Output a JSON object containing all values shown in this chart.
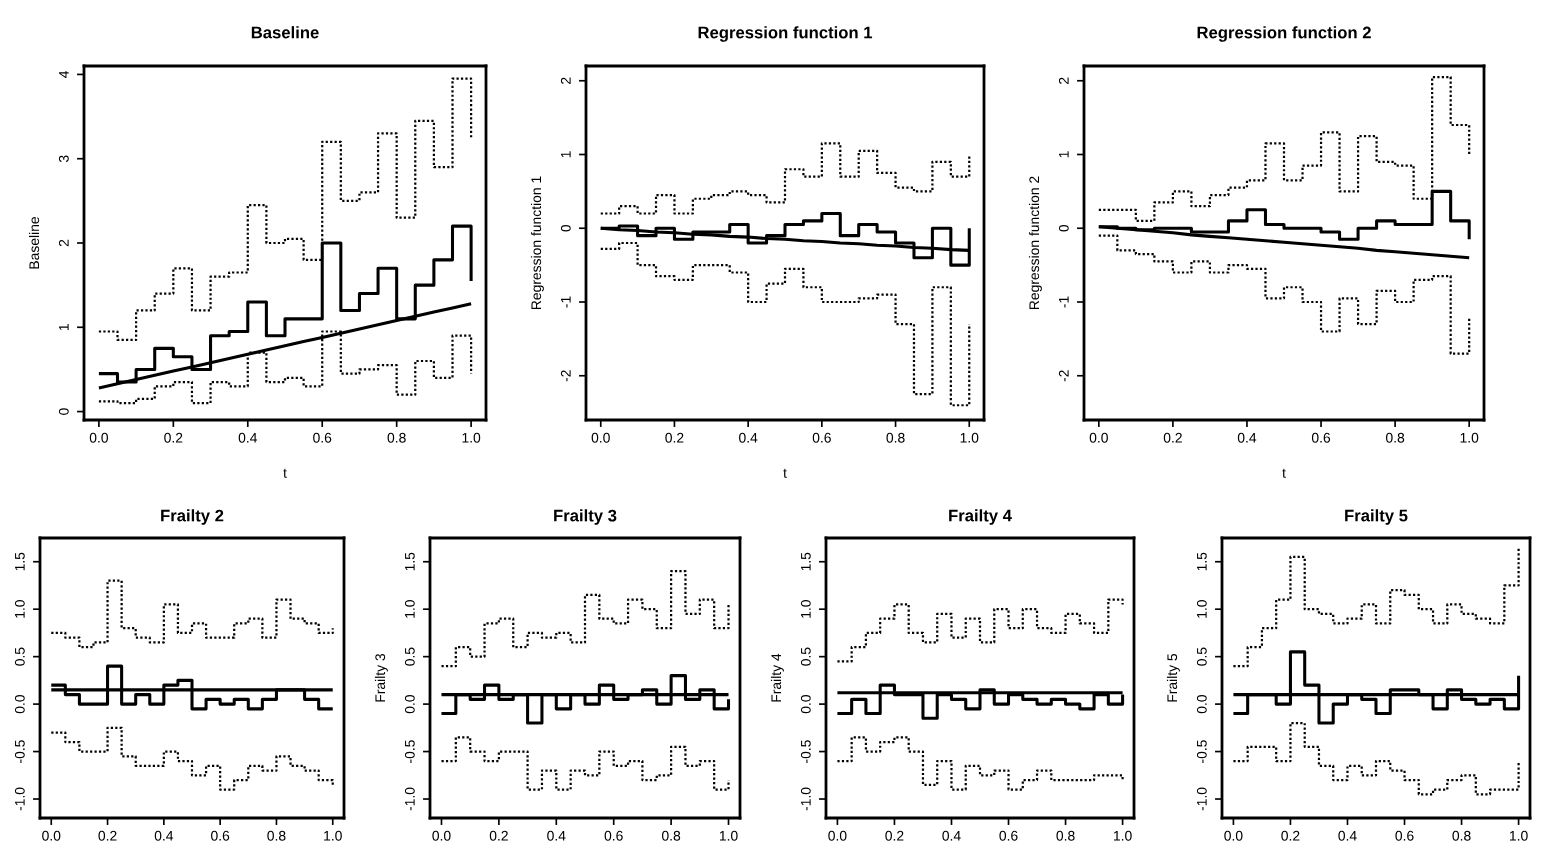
{
  "chart_data": [
    {
      "type": "step",
      "title": "Baseline",
      "xlabel": "t",
      "ylabel": "Baseline",
      "x": [
        0,
        0.05,
        0.1,
        0.15,
        0.2,
        0.25,
        0.3,
        0.35,
        0.4,
        0.45,
        0.5,
        0.55,
        0.6,
        0.65,
        0.7,
        0.75,
        0.8,
        0.85,
        0.9,
        0.95,
        1.0
      ],
      "xlim": [
        -0.04,
        1.04
      ],
      "ylim": [
        -0.1,
        4.1
      ],
      "xticks": [
        {
          "value": 0,
          "label": "0.0"
        },
        {
          "value": 0.2,
          "label": "0.2"
        },
        {
          "value": 0.4,
          "label": "0.4"
        },
        {
          "value": 0.6,
          "label": "0.6"
        },
        {
          "value": 0.8,
          "label": "0.8"
        },
        {
          "value": 1,
          "label": "1.0"
        }
      ],
      "yticks": [
        0,
        1,
        2,
        3,
        4
      ],
      "series": [
        {
          "color": "#000000",
          "line_style": "solid",
          "values": [
            0.45,
            0.35,
            0.5,
            0.75,
            0.65,
            0.5,
            0.9,
            0.95,
            1.3,
            0.9,
            1.1,
            1.1,
            2.0,
            1.2,
            1.4,
            1.7,
            1.1,
            1.5,
            1.8,
            2.2,
            1.55
          ]
        },
        {
          "color": "#000000",
          "line_style": "dotted",
          "values": [
            0.95,
            0.85,
            1.2,
            1.4,
            1.7,
            1.2,
            1.6,
            1.65,
            2.45,
            2.0,
            2.05,
            1.8,
            3.2,
            2.5,
            2.6,
            3.3,
            2.3,
            3.45,
            2.9,
            3.95,
            3.25
          ]
        },
        {
          "color": "#000000",
          "line_style": "dotted",
          "values": [
            0.12,
            0.1,
            0.15,
            0.3,
            0.35,
            0.1,
            0.35,
            0.3,
            0.7,
            0.35,
            0.4,
            0.3,
            0.95,
            0.45,
            0.5,
            0.55,
            0.2,
            0.6,
            0.4,
            0.9,
            0.45
          ]
        },
        {
          "type": "line",
          "color": "#000000",
          "line_style": "solid",
          "values": [
            0.28,
            0.33,
            0.38,
            0.43,
            0.48,
            0.53,
            0.58,
            0.63,
            0.68,
            0.73,
            0.78,
            0.83,
            0.88,
            0.93,
            0.98,
            1.03,
            1.08,
            1.13,
            1.18,
            1.23,
            1.28
          ]
        }
      ]
    },
    {
      "type": "step",
      "title": "Regression function 1",
      "xlabel": "t",
      "ylabel": "Regression function 1",
      "x": [
        0,
        0.05,
        0.1,
        0.15,
        0.2,
        0.25,
        0.3,
        0.35,
        0.4,
        0.45,
        0.5,
        0.55,
        0.6,
        0.65,
        0.7,
        0.75,
        0.8,
        0.85,
        0.9,
        0.95,
        1.0
      ],
      "xlim": [
        -0.04,
        1.04
      ],
      "ylim": [
        -2.6,
        2.2
      ],
      "xticks": [
        {
          "value": 0,
          "label": "0.0"
        },
        {
          "value": 0.2,
          "label": "0.2"
        },
        {
          "value": 0.4,
          "label": "0.4"
        },
        {
          "value": 0.6,
          "label": "0.6"
        },
        {
          "value": 0.8,
          "label": "0.8"
        },
        {
          "value": 1,
          "label": "1.0"
        }
      ],
      "yticks": [
        -2,
        -1,
        0,
        1,
        2
      ],
      "series": [
        {
          "color": "#000000",
          "line_style": "solid",
          "values": [
            0,
            0.03,
            -0.1,
            0,
            -0.15,
            -0.05,
            -0.05,
            0.05,
            -0.2,
            -0.1,
            0.05,
            0.1,
            0.2,
            -0.1,
            0.05,
            -0.05,
            -0.2,
            -0.4,
            0,
            -0.5,
            0
          ]
        },
        {
          "color": "#000000",
          "line_style": "dotted",
          "values": [
            0.2,
            0.3,
            0.2,
            0.45,
            0.2,
            0.4,
            0.45,
            0.5,
            0.45,
            0.35,
            0.8,
            0.7,
            1.15,
            0.7,
            1.05,
            0.75,
            0.55,
            0.5,
            0.9,
            0.7,
            1.0
          ]
        },
        {
          "color": "#000000",
          "line_style": "dotted",
          "values": [
            -0.28,
            -0.2,
            -0.5,
            -0.65,
            -0.7,
            -0.5,
            -0.5,
            -0.6,
            -1.0,
            -0.75,
            -0.55,
            -0.8,
            -1.0,
            -1.0,
            -0.95,
            -0.9,
            -1.3,
            -2.25,
            -0.8,
            -2.4,
            -1.3
          ]
        },
        {
          "type": "line",
          "color": "#000000",
          "line_style": "solid",
          "values": [
            0,
            -0.02,
            -0.03,
            -0.05,
            -0.06,
            -0.08,
            -0.09,
            -0.11,
            -0.12,
            -0.14,
            -0.15,
            -0.17,
            -0.18,
            -0.2,
            -0.21,
            -0.23,
            -0.24,
            -0.26,
            -0.27,
            -0.29,
            -0.3
          ]
        }
      ]
    },
    {
      "type": "step",
      "title": "Regression function 2",
      "xlabel": "t",
      "ylabel": "Regression function 2",
      "x": [
        0,
        0.05,
        0.1,
        0.15,
        0.2,
        0.25,
        0.3,
        0.35,
        0.4,
        0.45,
        0.5,
        0.55,
        0.6,
        0.65,
        0.7,
        0.75,
        0.8,
        0.85,
        0.9,
        0.95,
        1.0
      ],
      "xlim": [
        -0.04,
        1.04
      ],
      "ylim": [
        -2.6,
        2.2
      ],
      "xticks": [
        {
          "value": 0,
          "label": "0.0"
        },
        {
          "value": 0.2,
          "label": "0.2"
        },
        {
          "value": 0.4,
          "label": "0.4"
        },
        {
          "value": 0.6,
          "label": "0.6"
        },
        {
          "value": 0.8,
          "label": "0.8"
        },
        {
          "value": 1,
          "label": "1.0"
        }
      ],
      "yticks": [
        -2,
        -1,
        0,
        1,
        2
      ],
      "series": [
        {
          "color": "#000000",
          "line_style": "solid",
          "values": [
            0.02,
            0,
            -0.02,
            0,
            0,
            -0.05,
            -0.05,
            0.1,
            0.25,
            0.05,
            0,
            0,
            -0.05,
            -0.15,
            0,
            0.1,
            0.05,
            0.05,
            0.5,
            0.1,
            -0.15
          ]
        },
        {
          "color": "#000000",
          "line_style": "dotted",
          "values": [
            0.25,
            0.25,
            0.1,
            0.35,
            0.5,
            0.3,
            0.45,
            0.55,
            0.65,
            1.15,
            0.65,
            0.85,
            1.3,
            0.5,
            1.25,
            0.9,
            0.85,
            0.4,
            2.05,
            1.4,
            1.0
          ]
        },
        {
          "color": "#000000",
          "line_style": "dotted",
          "values": [
            -0.1,
            -0.3,
            -0.35,
            -0.45,
            -0.6,
            -0.45,
            -0.6,
            -0.5,
            -0.55,
            -0.95,
            -0.8,
            -1.0,
            -1.4,
            -0.95,
            -1.3,
            -0.85,
            -1.0,
            -0.7,
            -0.65,
            -1.7,
            -1.2
          ]
        },
        {
          "type": "line",
          "color": "#000000",
          "line_style": "solid",
          "values": [
            0.02,
            0,
            -0.02,
            -0.04,
            -0.06,
            -0.09,
            -0.11,
            -0.13,
            -0.15,
            -0.17,
            -0.19,
            -0.21,
            -0.23,
            -0.25,
            -0.27,
            -0.3,
            -0.32,
            -0.34,
            -0.36,
            -0.38,
            -0.4
          ]
        }
      ]
    },
    {
      "type": "step",
      "title": "Frailty 2",
      "x": [
        0,
        0.05,
        0.1,
        0.15,
        0.2,
        0.25,
        0.3,
        0.35,
        0.4,
        0.45,
        0.5,
        0.55,
        0.6,
        0.65,
        0.7,
        0.75,
        0.8,
        0.85,
        0.9,
        0.95,
        1.0
      ],
      "xlim": [
        -0.04,
        1.04
      ],
      "ylim": [
        -1.2,
        1.75
      ],
      "xticks": [
        {
          "value": 0,
          "label": "0.0"
        },
        {
          "value": 0.2,
          "label": "0.2"
        },
        {
          "value": 0.4,
          "label": "0.4"
        },
        {
          "value": 0.6,
          "label": "0.6"
        },
        {
          "value": 0.8,
          "label": "0.8"
        },
        {
          "value": 1,
          "label": "1.0"
        }
      ],
      "yticks": [
        {
          "value": -1,
          "label": "-1.0"
        },
        {
          "value": -0.5,
          "label": "-0.5"
        },
        {
          "value": 0,
          "label": "0.0"
        },
        {
          "value": 0.5,
          "label": "0.5"
        },
        {
          "value": 1,
          "label": "1.0"
        },
        {
          "value": 1.5,
          "label": "1.5"
        }
      ],
      "series": [
        {
          "color": "#000000",
          "line_style": "solid",
          "values": [
            0.2,
            0.1,
            0,
            0,
            0.4,
            0,
            0.1,
            0,
            0.2,
            0.25,
            -0.05,
            0.05,
            0,
            0.05,
            -0.05,
            0.05,
            0.15,
            0.15,
            0.05,
            -0.05,
            -0.05
          ]
        },
        {
          "color": "#000000",
          "line_style": "dotted",
          "values": [
            0.75,
            0.7,
            0.6,
            0.65,
            1.3,
            0.8,
            0.7,
            0.65,
            1.05,
            0.75,
            0.85,
            0.7,
            0.7,
            0.85,
            0.9,
            0.7,
            1.1,
            0.9,
            0.85,
            0.75,
            0.8
          ]
        },
        {
          "color": "#000000",
          "line_style": "dotted",
          "values": [
            -0.3,
            -0.4,
            -0.5,
            -0.5,
            -0.25,
            -0.55,
            -0.65,
            -0.65,
            -0.5,
            -0.6,
            -0.75,
            -0.65,
            -0.9,
            -0.8,
            -0.65,
            -0.7,
            -0.55,
            -0.65,
            -0.7,
            -0.8,
            -0.85
          ]
        },
        {
          "type": "line",
          "color": "#000000",
          "line_style": "solid",
          "values": [
            0.15,
            0.15,
            0.15,
            0.15,
            0.15,
            0.15,
            0.15,
            0.15,
            0.15,
            0.15,
            0.15,
            0.15,
            0.15,
            0.15,
            0.15,
            0.15,
            0.15,
            0.15,
            0.15,
            0.15,
            0.15
          ]
        }
      ]
    },
    {
      "type": "step",
      "title": "Frailty 3",
      "ylabel": "Frailty 3",
      "x": [
        0,
        0.05,
        0.1,
        0.15,
        0.2,
        0.25,
        0.3,
        0.35,
        0.4,
        0.45,
        0.5,
        0.55,
        0.6,
        0.65,
        0.7,
        0.75,
        0.8,
        0.85,
        0.9,
        0.95,
        1.0
      ],
      "xlim": [
        -0.04,
        1.04
      ],
      "ylim": [
        -1.2,
        1.75
      ],
      "xticks": [
        {
          "value": 0,
          "label": "0.0"
        },
        {
          "value": 0.2,
          "label": "0.2"
        },
        {
          "value": 0.4,
          "label": "0.4"
        },
        {
          "value": 0.6,
          "label": "0.6"
        },
        {
          "value": 0.8,
          "label": "0.8"
        },
        {
          "value": 1,
          "label": "1.0"
        }
      ],
      "yticks": [
        {
          "value": -1,
          "label": "-1.0"
        },
        {
          "value": -0.5,
          "label": "-0.5"
        },
        {
          "value": 0,
          "label": "0.0"
        },
        {
          "value": 0.5,
          "label": "0.5"
        },
        {
          "value": 1,
          "label": "1.0"
        },
        {
          "value": 1.5,
          "label": "1.5"
        }
      ],
      "series": [
        {
          "color": "#000000",
          "line_style": "solid",
          "values": [
            -0.1,
            0.1,
            0.05,
            0.2,
            0.05,
            0.1,
            -0.2,
            0.1,
            -0.05,
            0.1,
            0,
            0.2,
            0.05,
            0.1,
            0.15,
            0,
            0.3,
            0.05,
            0.15,
            -0.05,
            0.05
          ]
        },
        {
          "color": "#000000",
          "line_style": "dotted",
          "values": [
            0.4,
            0.6,
            0.5,
            0.85,
            0.9,
            0.6,
            0.75,
            0.7,
            0.75,
            0.65,
            1.15,
            0.9,
            0.85,
            1.1,
            1.0,
            0.8,
            1.4,
            0.95,
            1.1,
            0.8,
            1.05
          ]
        },
        {
          "color": "#000000",
          "line_style": "dotted",
          "values": [
            -0.6,
            -0.35,
            -0.5,
            -0.6,
            -0.5,
            -0.5,
            -0.9,
            -0.7,
            -0.9,
            -0.7,
            -0.75,
            -0.5,
            -0.65,
            -0.6,
            -0.8,
            -0.75,
            -0.45,
            -0.65,
            -0.6,
            -0.9,
            -0.8
          ]
        },
        {
          "type": "line",
          "color": "#000000",
          "line_style": "solid",
          "values": [
            0.1,
            0.1,
            0.1,
            0.1,
            0.1,
            0.1,
            0.1,
            0.1,
            0.1,
            0.1,
            0.1,
            0.1,
            0.1,
            0.1,
            0.1,
            0.1,
            0.1,
            0.1,
            0.1,
            0.1,
            0.1
          ]
        }
      ]
    },
    {
      "type": "step",
      "title": "Frailty 4",
      "ylabel": "Frailty 4",
      "x": [
        0,
        0.05,
        0.1,
        0.15,
        0.2,
        0.25,
        0.3,
        0.35,
        0.4,
        0.45,
        0.5,
        0.55,
        0.6,
        0.65,
        0.7,
        0.75,
        0.8,
        0.85,
        0.9,
        0.95,
        1.0
      ],
      "xlim": [
        -0.04,
        1.04
      ],
      "ylim": [
        -1.2,
        1.75
      ],
      "xticks": [
        {
          "value": 0,
          "label": "0.0"
        },
        {
          "value": 0.2,
          "label": "0.2"
        },
        {
          "value": 0.4,
          "label": "0.4"
        },
        {
          "value": 0.6,
          "label": "0.6"
        },
        {
          "value": 0.8,
          "label": "0.8"
        },
        {
          "value": 1,
          "label": "1.0"
        }
      ],
      "yticks": [
        {
          "value": -1,
          "label": "-1.0"
        },
        {
          "value": -0.5,
          "label": "-0.5"
        },
        {
          "value": 0,
          "label": "0.0"
        },
        {
          "value": 0.5,
          "label": "0.5"
        },
        {
          "value": 1,
          "label": "1.0"
        },
        {
          "value": 1.5,
          "label": "1.5"
        }
      ],
      "series": [
        {
          "color": "#000000",
          "line_style": "solid",
          "values": [
            -0.1,
            0.05,
            -0.1,
            0.2,
            0.1,
            0.1,
            -0.15,
            0.1,
            0.05,
            -0.05,
            0.15,
            0,
            0.1,
            0.05,
            0,
            0.05,
            0,
            -0.05,
            0.1,
            0,
            0.1
          ]
        },
        {
          "color": "#000000",
          "line_style": "dotted",
          "values": [
            0.45,
            0.6,
            0.75,
            0.9,
            1.05,
            0.75,
            0.65,
            0.95,
            0.7,
            0.9,
            0.65,
            1.0,
            0.8,
            1.0,
            0.8,
            0.75,
            0.95,
            0.85,
            0.75,
            1.1,
            1.05
          ]
        },
        {
          "color": "#000000",
          "line_style": "dotted",
          "values": [
            -0.6,
            -0.35,
            -0.5,
            -0.4,
            -0.35,
            -0.5,
            -0.85,
            -0.6,
            -0.9,
            -0.65,
            -0.75,
            -0.7,
            -0.9,
            -0.8,
            -0.7,
            -0.8,
            -0.8,
            -0.8,
            -0.75,
            -0.75,
            -0.8
          ]
        },
        {
          "type": "line",
          "color": "#000000",
          "line_style": "solid",
          "values": [
            0.12,
            0.12,
            0.12,
            0.12,
            0.12,
            0.12,
            0.12,
            0.12,
            0.12,
            0.12,
            0.12,
            0.12,
            0.12,
            0.12,
            0.12,
            0.12,
            0.12,
            0.12,
            0.12,
            0.12,
            0.12
          ]
        }
      ]
    },
    {
      "type": "step",
      "title": "Frailty 5",
      "ylabel": "Frailty 5",
      "x": [
        0,
        0.05,
        0.1,
        0.15,
        0.2,
        0.25,
        0.3,
        0.35,
        0.4,
        0.45,
        0.5,
        0.55,
        0.6,
        0.65,
        0.7,
        0.75,
        0.8,
        0.85,
        0.9,
        0.95,
        1.0
      ],
      "xlim": [
        -0.04,
        1.04
      ],
      "ylim": [
        -1.2,
        1.75
      ],
      "xticks": [
        {
          "value": 0,
          "label": "0.0"
        },
        {
          "value": 0.2,
          "label": "0.2"
        },
        {
          "value": 0.4,
          "label": "0.4"
        },
        {
          "value": 0.6,
          "label": "0.6"
        },
        {
          "value": 0.8,
          "label": "0.8"
        },
        {
          "value": 1,
          "label": "1.0"
        }
      ],
      "yticks": [
        {
          "value": -1,
          "label": "-1.0"
        },
        {
          "value": -0.5,
          "label": "-0.5"
        },
        {
          "value": 0,
          "label": "0.0"
        },
        {
          "value": 0.5,
          "label": "0.5"
        },
        {
          "value": 1,
          "label": "1.0"
        },
        {
          "value": 1.5,
          "label": "1.5"
        }
      ],
      "series": [
        {
          "color": "#000000",
          "line_style": "solid",
          "values": [
            -0.1,
            0.1,
            0.1,
            0,
            0.55,
            0.2,
            -0.2,
            0,
            0.1,
            0.05,
            -0.1,
            0.15,
            0.15,
            0.1,
            -0.05,
            0.15,
            0.05,
            0,
            0.05,
            -0.05,
            0.3
          ]
        },
        {
          "color": "#000000",
          "line_style": "dotted",
          "values": [
            0.4,
            0.6,
            0.8,
            1.1,
            1.55,
            1.0,
            0.95,
            0.85,
            0.9,
            1.05,
            0.85,
            1.2,
            1.15,
            1.0,
            0.85,
            1.05,
            0.95,
            0.9,
            0.85,
            1.25,
            1.65
          ]
        },
        {
          "color": "#000000",
          "line_style": "dotted",
          "values": [
            -0.6,
            -0.45,
            -0.45,
            -0.6,
            -0.2,
            -0.45,
            -0.65,
            -0.8,
            -0.65,
            -0.75,
            -0.6,
            -0.7,
            -0.8,
            -0.95,
            -0.9,
            -0.8,
            -0.75,
            -0.95,
            -0.9,
            -0.9,
            -0.6
          ]
        },
        {
          "type": "line",
          "color": "#000000",
          "line_style": "solid",
          "values": [
            0.1,
            0.1,
            0.1,
            0.1,
            0.1,
            0.1,
            0.1,
            0.1,
            0.1,
            0.1,
            0.1,
            0.1,
            0.1,
            0.1,
            0.1,
            0.1,
            0.1,
            0.1,
            0.1,
            0.1,
            0.1
          ]
        }
      ]
    }
  ]
}
